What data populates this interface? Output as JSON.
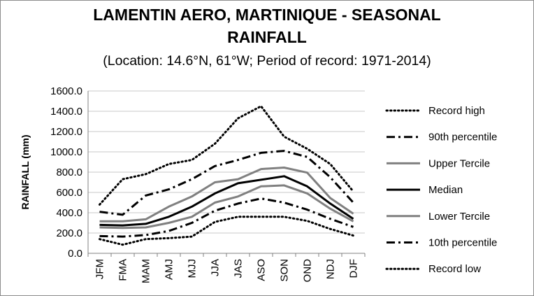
{
  "chart_data": {
    "type": "line",
    "title_line1": "LAMENTIN AERO, MARTINIQUE - SEASONAL",
    "title_line2": "RAINFALL",
    "subtitle": "(Location: 14.6°N, 61°W; Period of record: 1971-2014)",
    "xlabel": "",
    "ylabel": "RAINFALL (mm)",
    "categories": [
      "JFM",
      "FMA",
      "MAM",
      "AMJ",
      "MJJ",
      "JJA",
      "JAS",
      "ASO",
      "SON",
      "OND",
      "NDJ",
      "DJF"
    ],
    "yticks": [
      "0.0",
      "200.0",
      "400.0",
      "600.0",
      "800.0",
      "1000.0",
      "1200.0",
      "1400.0",
      "1600.0"
    ],
    "ylim": [
      0,
      1600
    ],
    "grid": true,
    "legend_position": "right",
    "series": [
      {
        "name": "Record high",
        "style": "dotted",
        "color": "#000000",
        "values": [
          480,
          730,
          780,
          880,
          920,
          1080,
          1330,
          1450,
          1150,
          1030,
          880,
          610
        ]
      },
      {
        "name": "90th percentile",
        "style": "dashdot",
        "color": "#000000",
        "values": [
          410,
          380,
          570,
          630,
          730,
          860,
          920,
          990,
          1010,
          950,
          750,
          500
        ]
      },
      {
        "name": "Upper Tercile",
        "style": "solid",
        "color": "#808080",
        "values": [
          315,
          315,
          335,
          460,
          560,
          700,
          730,
          830,
          845,
          795,
          545,
          390
        ]
      },
      {
        "name": "Median",
        "style": "solid",
        "color": "#000000",
        "values": [
          280,
          275,
          290,
          360,
          460,
          590,
          690,
          725,
          760,
          660,
          490,
          340
        ]
      },
      {
        "name": "Lower Tercile",
        "style": "solid",
        "color": "#808080",
        "values": [
          255,
          250,
          255,
          300,
          360,
          500,
          560,
          660,
          670,
          590,
          440,
          315
        ]
      },
      {
        "name": "10th percentile",
        "style": "dashdot",
        "color": "#000000",
        "values": [
          170,
          165,
          180,
          220,
          300,
          420,
          490,
          540,
          500,
          430,
          340,
          260
        ]
      },
      {
        "name": "Record low",
        "style": "dotted",
        "color": "#000000",
        "values": [
          140,
          85,
          140,
          150,
          165,
          310,
          360,
          360,
          360,
          320,
          240,
          175
        ]
      }
    ]
  }
}
